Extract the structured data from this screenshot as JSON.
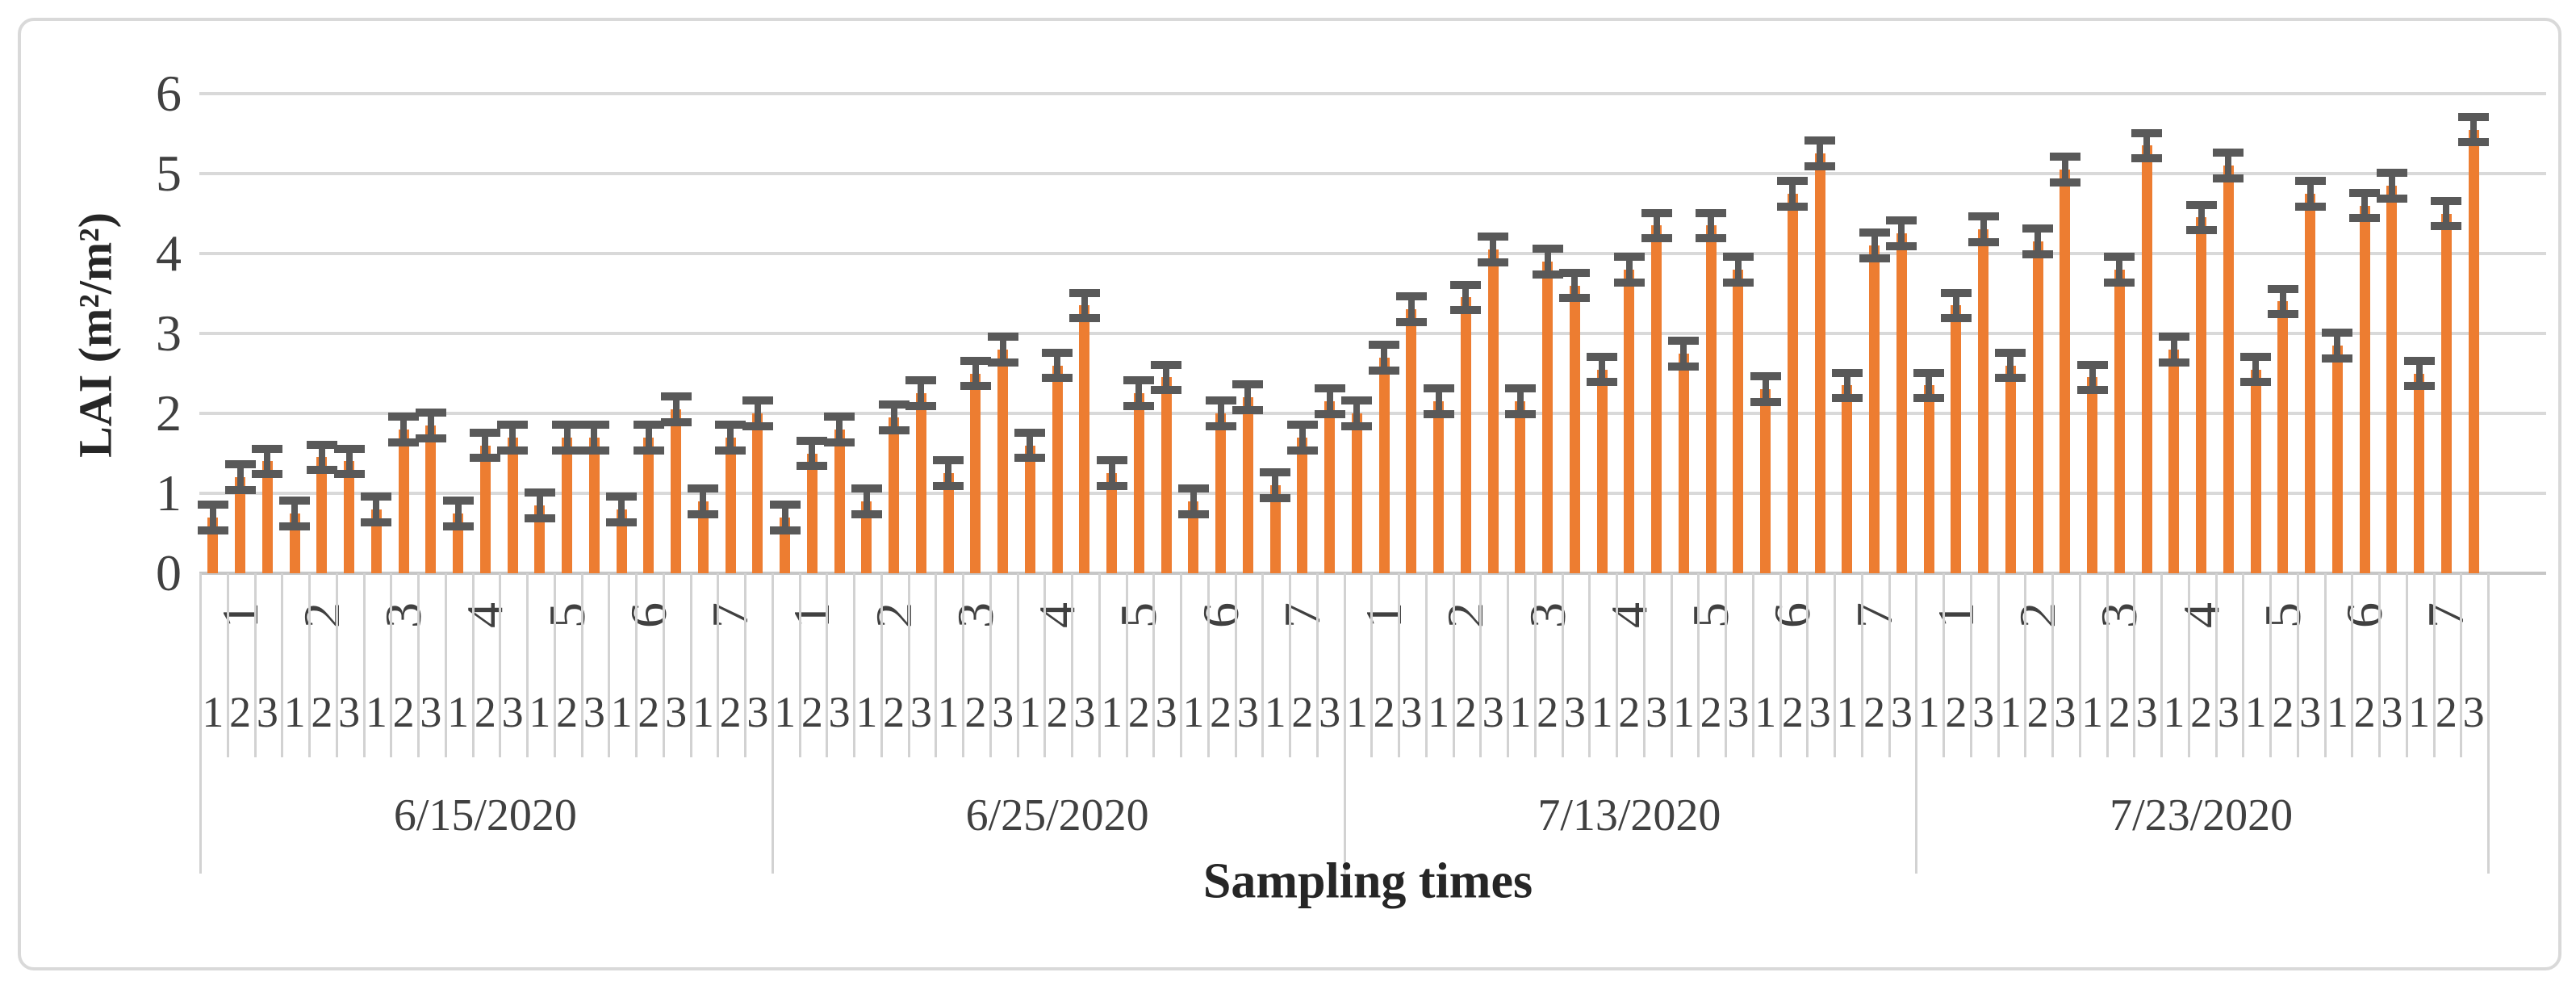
{
  "chart_data": {
    "type": "bar",
    "title": "",
    "xlabel": "Sampling times",
    "ylabel": "LAI (m²/m²)",
    "ylim": [
      0,
      6
    ],
    "ytick_labels": [
      "0",
      "1",
      "2",
      "3",
      "4",
      "5",
      "6"
    ],
    "grid": true,
    "legend": "none",
    "bar_color": "#ed7d31",
    "error_bar_color": "#595959",
    "gridline_color": "#d9d9d9",
    "error_value": 0.16,
    "plot_labels": [
      "1",
      "2",
      "3",
      "4",
      "5",
      "6",
      "7"
    ],
    "replicate_labels": [
      "1",
      "2",
      "3"
    ],
    "groups": [
      {
        "date": "6/15/2020",
        "plots": [
          {
            "plot": "1",
            "values": [
              0.7,
              1.2,
              1.4
            ]
          },
          {
            "plot": "2",
            "values": [
              0.75,
              1.45,
              1.4
            ]
          },
          {
            "plot": "3",
            "values": [
              0.8,
              1.8,
              1.85
            ]
          },
          {
            "plot": "4",
            "values": [
              0.75,
              1.6,
              1.7
            ]
          },
          {
            "plot": "5",
            "values": [
              0.85,
              1.7,
              1.7
            ]
          },
          {
            "plot": "6",
            "values": [
              0.8,
              1.7,
              2.05
            ]
          },
          {
            "plot": "7",
            "values": [
              0.9,
              1.7,
              2.0
            ]
          }
        ]
      },
      {
        "date": "6/25/2020",
        "plots": [
          {
            "plot": "1",
            "values": [
              0.7,
              1.5,
              1.8
            ]
          },
          {
            "plot": "2",
            "values": [
              0.9,
              1.95,
              2.25
            ]
          },
          {
            "plot": "3",
            "values": [
              1.25,
              2.5,
              2.8
            ]
          },
          {
            "plot": "4",
            "values": [
              1.6,
              2.6,
              3.35
            ]
          },
          {
            "plot": "5",
            "values": [
              1.25,
              2.25,
              2.45
            ]
          },
          {
            "plot": "6",
            "values": [
              0.9,
              2.0,
              2.2
            ]
          },
          {
            "plot": "7",
            "values": [
              1.1,
              1.7,
              2.15
            ]
          }
        ]
      },
      {
        "date": "7/13/2020",
        "plots": [
          {
            "plot": "1",
            "values": [
              2.0,
              2.7,
              3.3
            ]
          },
          {
            "plot": "2",
            "values": [
              2.15,
              3.45,
              4.05
            ]
          },
          {
            "plot": "3",
            "values": [
              2.15,
              3.9,
              3.6
            ]
          },
          {
            "plot": "4",
            "values": [
              2.55,
              3.8,
              4.35
            ]
          },
          {
            "plot": "5",
            "values": [
              2.75,
              4.35,
              3.8
            ]
          },
          {
            "plot": "6",
            "values": [
              2.3,
              4.75,
              5.25
            ]
          },
          {
            "plot": "7",
            "values": [
              2.35,
              4.1,
              4.25
            ]
          }
        ]
      },
      {
        "date": "7/23/2020",
        "plots": [
          {
            "plot": "1",
            "values": [
              2.35,
              3.35,
              4.3
            ]
          },
          {
            "plot": "2",
            "values": [
              2.6,
              4.15,
              5.05
            ]
          },
          {
            "plot": "3",
            "values": [
              2.45,
              3.8,
              5.35
            ]
          },
          {
            "plot": "4",
            "values": [
              2.8,
              4.45,
              5.1
            ]
          },
          {
            "plot": "5",
            "values": [
              2.55,
              3.4,
              4.75
            ]
          },
          {
            "plot": "6",
            "values": [
              2.85,
              4.6,
              4.85
            ]
          },
          {
            "plot": "7",
            "values": [
              2.5,
              4.5,
              5.55
            ]
          }
        ]
      }
    ]
  }
}
